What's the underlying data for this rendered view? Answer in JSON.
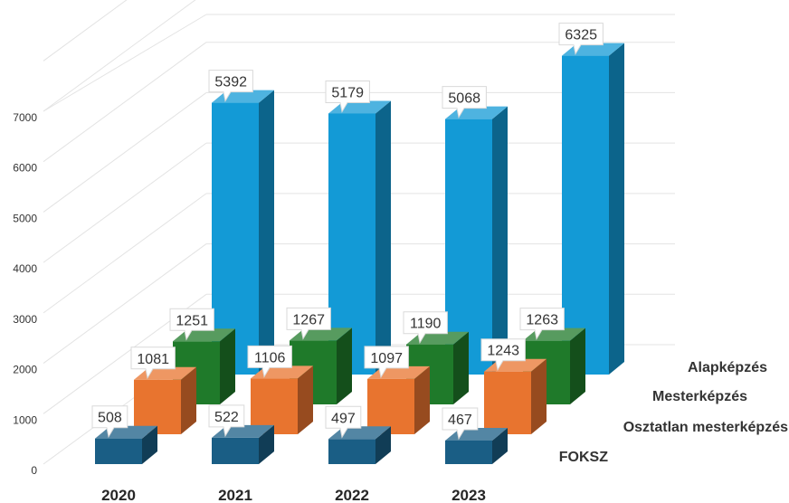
{
  "chart_data": {
    "type": "bar",
    "categories": [
      "2020",
      "2021",
      "2022",
      "2023"
    ],
    "y_ticks": [
      "0",
      "1000",
      "2000",
      "3000",
      "4000",
      "5000",
      "6000",
      "7000"
    ],
    "ylim": [
      0,
      7000
    ],
    "series": [
      {
        "name": "FOKSZ",
        "values": [
          508,
          522,
          497,
          467
        ],
        "color": "#1a5e85"
      },
      {
        "name": "Osztatlan mesterképzés",
        "values": [
          1081,
          1106,
          1097,
          1243
        ],
        "color": "#e8742f"
      },
      {
        "name": "Mesterképzés",
        "values": [
          1251,
          1267,
          1190,
          1263
        ],
        "color": "#1f7a2a"
      },
      {
        "name": "Alapképzés",
        "values": [
          5392,
          5179,
          5068,
          6325
        ],
        "color": "#139ad6"
      }
    ],
    "grid": true,
    "legend": "series labels at right of depth axis"
  }
}
